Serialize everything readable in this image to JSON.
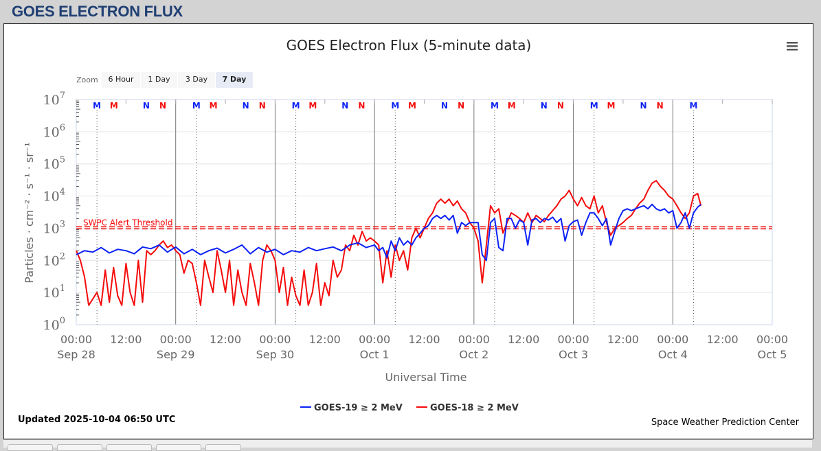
{
  "page": {
    "title": "GOES ELECTRON FLUX",
    "updated": "Updated 2025-10-04 06:50 UTC",
    "credit": "Space Weather Prediction Center"
  },
  "zoom": {
    "label": "Zoom",
    "buttons": [
      "6 Hour",
      "1 Day",
      "3 Day",
      "7 Day"
    ],
    "selected": "7 Day"
  },
  "menu_icon": "hamburger-menu-icon",
  "colors": {
    "goes19": "#0a21f5",
    "goes18": "#f50a0a",
    "threshold": "#f50a0a"
  },
  "chart_data": {
    "type": "line",
    "title": "GOES Electron Flux (5-minute data)",
    "xlabel": "Universal Time",
    "ylabel": "Particles · cm⁻² · s⁻¹ · sr⁻¹",
    "yscale": "log",
    "ylim": [
      1,
      10000000
    ],
    "y_ticks": [
      "10^0",
      "10^1",
      "10^2",
      "10^3",
      "10^4",
      "10^5",
      "10^6",
      "10^7"
    ],
    "x_unit": "hours since 2025-09-28 00:00 UTC",
    "xlim": [
      0,
      168
    ],
    "x_ticks": [
      {
        "time": "00:00",
        "date": "Sep 28"
      },
      {
        "time": "12:00",
        "date": ""
      },
      {
        "time": "00:00",
        "date": "Sep 29"
      },
      {
        "time": "12:00",
        "date": ""
      },
      {
        "time": "00:00",
        "date": "Sep 30"
      },
      {
        "time": "12:00",
        "date": ""
      },
      {
        "time": "00:00",
        "date": "Oct 1"
      },
      {
        "time": "12:00",
        "date": ""
      },
      {
        "time": "00:00",
        "date": "Oct 2"
      },
      {
        "time": "12:00",
        "date": ""
      },
      {
        "time": "00:00",
        "date": "Oct 3"
      },
      {
        "time": "12:00",
        "date": ""
      },
      {
        "time": "00:00",
        "date": "Oct 4"
      },
      {
        "time": "12:00",
        "date": ""
      },
      {
        "time": "00:00",
        "date": "Oct 5"
      }
    ],
    "threshold": {
      "label": "SWPC Alert Threshold",
      "value": 1000
    },
    "legend_position": "bottom",
    "markers": {
      "labels": [
        {
          "text": "M",
          "series": "GOES-19",
          "hour_of_day": 5.0
        },
        {
          "text": "M",
          "series": "GOES-18",
          "hour_of_day": 9.1
        },
        {
          "text": "N",
          "series": "GOES-19",
          "hour_of_day": 16.9
        },
        {
          "text": "N",
          "series": "GOES-18",
          "hour_of_day": 20.9
        }
      ],
      "last_hour": 152
    },
    "series": [
      {
        "name": "GOES-19 ≥ 2 MeV",
        "color": "#0a21f5",
        "points": [
          [
            0,
            150
          ],
          [
            2,
            200
          ],
          [
            4,
            180
          ],
          [
            6,
            250
          ],
          [
            8,
            170
          ],
          [
            10,
            220
          ],
          [
            12,
            200
          ],
          [
            14,
            160
          ],
          [
            16,
            260
          ],
          [
            18,
            230
          ],
          [
            20,
            300
          ],
          [
            22,
            180
          ],
          [
            24,
            260
          ],
          [
            26,
            160
          ],
          [
            28,
            220
          ],
          [
            30,
            150
          ],
          [
            32,
            200
          ],
          [
            34,
            240
          ],
          [
            36,
            170
          ],
          [
            38,
            220
          ],
          [
            40,
            300
          ],
          [
            42,
            160
          ],
          [
            44,
            250
          ],
          [
            46,
            180
          ],
          [
            48,
            220
          ],
          [
            50,
            150
          ],
          [
            52,
            200
          ],
          [
            54,
            180
          ],
          [
            56,
            250
          ],
          [
            58,
            200
          ],
          [
            60,
            230
          ],
          [
            62,
            260
          ],
          [
            64,
            200
          ],
          [
            66,
            300
          ],
          [
            68,
            350
          ],
          [
            70,
            250
          ],
          [
            72,
            300
          ],
          [
            73,
            200
          ],
          [
            74,
            250
          ],
          [
            75,
            120
          ],
          [
            76,
            400
          ],
          [
            77,
            200
          ],
          [
            78,
            500
          ],
          [
            79,
            300
          ],
          [
            80,
            400
          ],
          [
            81,
            300
          ],
          [
            82,
            500
          ],
          [
            83,
            700
          ],
          [
            84,
            1000
          ],
          [
            85,
            1200
          ],
          [
            86,
            2000
          ],
          [
            87,
            2500
          ],
          [
            88,
            2000
          ],
          [
            89,
            2500
          ],
          [
            90,
            1800
          ],
          [
            91,
            2500
          ],
          [
            92,
            700
          ],
          [
            93,
            1500
          ],
          [
            94,
            1200
          ],
          [
            95,
            1500
          ],
          [
            96,
            1500
          ],
          [
            97,
            1500
          ],
          [
            98,
            150
          ],
          [
            99,
            100
          ],
          [
            100,
            1500
          ],
          [
            101,
            2000
          ],
          [
            102,
            250
          ],
          [
            103,
            200
          ],
          [
            104,
            2000
          ],
          [
            105,
            2000
          ],
          [
            106,
            1000
          ],
          [
            107,
            1800
          ],
          [
            108,
            1500
          ],
          [
            109,
            300
          ],
          [
            110,
            1800
          ],
          [
            111,
            2000
          ],
          [
            112,
            1500
          ],
          [
            113,
            2000
          ],
          [
            114,
            1800
          ],
          [
            115,
            2200
          ],
          [
            116,
            1500
          ],
          [
            117,
            2000
          ],
          [
            118,
            400
          ],
          [
            119,
            1200
          ],
          [
            120,
            1600
          ],
          [
            121,
            1800
          ],
          [
            122,
            600
          ],
          [
            123,
            1500
          ],
          [
            124,
            3000
          ],
          [
            125,
            3000
          ],
          [
            126,
            2000
          ],
          [
            127,
            1200
          ],
          [
            128,
            2000
          ],
          [
            129,
            300
          ],
          [
            130,
            800
          ],
          [
            131,
            2000
          ],
          [
            132,
            3500
          ],
          [
            133,
            4000
          ],
          [
            134,
            3500
          ],
          [
            135,
            4000
          ],
          [
            136,
            4500
          ],
          [
            137,
            5000
          ],
          [
            138,
            4000
          ],
          [
            139,
            5500
          ],
          [
            140,
            4000
          ],
          [
            141,
            3500
          ],
          [
            142,
            4000
          ],
          [
            143,
            3000
          ],
          [
            144,
            3500
          ],
          [
            145,
            1000
          ],
          [
            146,
            1500
          ],
          [
            147,
            3000
          ],
          [
            148,
            1000
          ],
          [
            149,
            3000
          ],
          [
            150,
            4500
          ],
          [
            150.8,
            5500
          ]
        ]
      },
      {
        "name": "GOES-18 ≥ 2 MeV",
        "color": "#f50a0a",
        "points": [
          [
            0,
            200
          ],
          [
            1,
            100
          ],
          [
            2,
            30
          ],
          [
            3,
            4
          ],
          [
            5,
            10
          ],
          [
            6,
            4
          ],
          [
            7,
            50
          ],
          [
            8,
            5
          ],
          [
            9,
            60
          ],
          [
            10,
            8
          ],
          [
            11,
            4
          ],
          [
            12,
            80
          ],
          [
            13,
            10
          ],
          [
            14,
            4
          ],
          [
            15,
            100
          ],
          [
            16,
            5
          ],
          [
            17,
            200
          ],
          [
            18,
            150
          ],
          [
            19,
            200
          ],
          [
            20,
            300
          ],
          [
            21,
            400
          ],
          [
            22,
            250
          ],
          [
            23,
            300
          ],
          [
            24,
            200
          ],
          [
            25,
            150
          ],
          [
            26,
            40
          ],
          [
            27,
            100
          ],
          [
            28,
            80
          ],
          [
            29,
            20
          ],
          [
            30,
            4
          ],
          [
            31,
            100
          ],
          [
            32,
            30
          ],
          [
            33,
            10
          ],
          [
            34,
            200
          ],
          [
            35,
            50
          ],
          [
            36,
            10
          ],
          [
            37,
            100
          ],
          [
            38,
            4
          ],
          [
            39,
            50
          ],
          [
            40,
            10
          ],
          [
            41,
            4
          ],
          [
            42,
            80
          ],
          [
            43,
            20
          ],
          [
            44,
            4
          ],
          [
            45,
            100
          ],
          [
            46,
            300
          ],
          [
            47,
            200
          ],
          [
            48,
            100
          ],
          [
            49,
            10
          ],
          [
            50,
            60
          ],
          [
            51,
            4
          ],
          [
            52,
            30
          ],
          [
            53,
            8
          ],
          [
            54,
            4
          ],
          [
            55,
            50
          ],
          [
            56,
            4
          ],
          [
            57,
            10
          ],
          [
            58,
            80
          ],
          [
            59,
            4
          ],
          [
            60,
            20
          ],
          [
            61,
            8
          ],
          [
            62,
            100
          ],
          [
            63,
            30
          ],
          [
            64,
            50
          ],
          [
            65,
            300
          ],
          [
            66,
            200
          ],
          [
            67,
            600
          ],
          [
            68,
            300
          ],
          [
            69,
            800
          ],
          [
            70,
            400
          ],
          [
            71,
            500
          ],
          [
            72,
            400
          ],
          [
            73,
            300
          ],
          [
            74,
            20
          ],
          [
            75,
            200
          ],
          [
            76,
            30
          ],
          [
            77,
            300
          ],
          [
            78,
            100
          ],
          [
            79,
            200
          ],
          [
            80,
            50
          ],
          [
            81,
            500
          ],
          [
            82,
            1000
          ],
          [
            83,
            500
          ],
          [
            84,
            1000
          ],
          [
            85,
            2000
          ],
          [
            86,
            3000
          ],
          [
            87,
            6000
          ],
          [
            88,
            8000
          ],
          [
            89,
            6000
          ],
          [
            90,
            8000
          ],
          [
            91,
            5000
          ],
          [
            92,
            7000
          ],
          [
            93,
            4000
          ],
          [
            94,
            3000
          ],
          [
            95,
            1500
          ],
          [
            96,
            1000
          ],
          [
            97,
            400
          ],
          [
            98,
            20
          ],
          [
            99,
            300
          ],
          [
            100,
            5000
          ],
          [
            101,
            3000
          ],
          [
            102,
            4000
          ],
          [
            103,
            700
          ],
          [
            104,
            1500
          ],
          [
            105,
            3000
          ],
          [
            106,
            2500
          ],
          [
            107,
            2000
          ],
          [
            108,
            1500
          ],
          [
            109,
            3000
          ],
          [
            110,
            1500
          ],
          [
            111,
            2500
          ],
          [
            112,
            2000
          ],
          [
            113,
            1600
          ],
          [
            114,
            2500
          ],
          [
            115,
            3500
          ],
          [
            116,
            5000
          ],
          [
            117,
            8000
          ],
          [
            118,
            10000
          ],
          [
            119,
            15000
          ],
          [
            120,
            8000
          ],
          [
            121,
            5000
          ],
          [
            122,
            9000
          ],
          [
            123,
            5000
          ],
          [
            124,
            4000
          ],
          [
            125,
            10000
          ],
          [
            126,
            3000
          ],
          [
            127,
            5000
          ],
          [
            128,
            1500
          ],
          [
            129,
            600
          ],
          [
            130,
            1000
          ],
          [
            131,
            1200
          ],
          [
            132,
            1500
          ],
          [
            133,
            2000
          ],
          [
            134,
            2500
          ],
          [
            135,
            4000
          ],
          [
            136,
            6000
          ],
          [
            137,
            8000
          ],
          [
            138,
            15000
          ],
          [
            139,
            25000
          ],
          [
            140,
            30000
          ],
          [
            141,
            20000
          ],
          [
            142,
            15000
          ],
          [
            143,
            10000
          ],
          [
            144,
            8000
          ],
          [
            145,
            5000
          ],
          [
            146,
            3000
          ],
          [
            147,
            2000
          ],
          [
            148,
            3000
          ],
          [
            149,
            10000
          ],
          [
            150,
            12000
          ],
          [
            150.8,
            5000
          ]
        ]
      }
    ]
  }
}
